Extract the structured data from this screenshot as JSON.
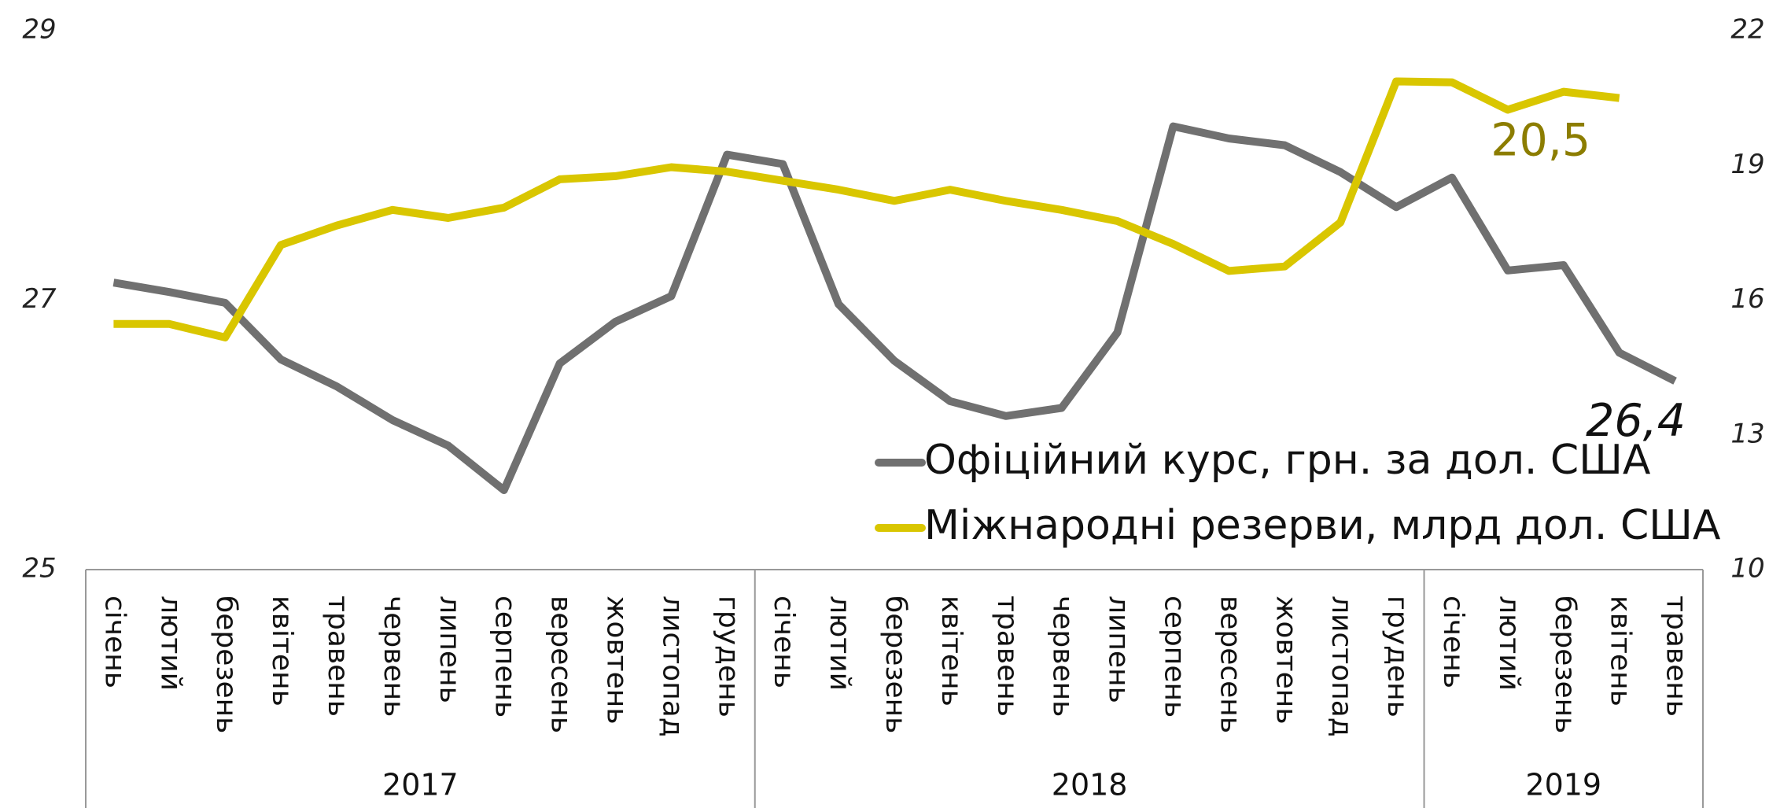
{
  "chart_data": {
    "type": "line",
    "categories": [
      "січень",
      "лютий",
      "березень",
      "квітень",
      "травень",
      "червень",
      "липень",
      "серпень",
      "вересень",
      "жовтень",
      "листопад",
      "грудень",
      "січень",
      "лютий",
      "березень",
      "квітень",
      "травень",
      "червень",
      "липень",
      "серпень",
      "вересень",
      "жовтень",
      "листопад",
      "грудень",
      "січень",
      "лютий",
      "березень",
      "квітень",
      "травень"
    ],
    "groups": [
      {
        "label": "2017",
        "count": 12
      },
      {
        "label": "2018",
        "count": 12
      },
      {
        "label": "2019",
        "count": 5
      }
    ],
    "series": [
      {
        "name": "Офіційний курс, грн. за дол. США",
        "color": "#707070",
        "axis": "y",
        "values": [
          27.13,
          27.06,
          26.98,
          26.56,
          26.36,
          26.11,
          25.92,
          25.59,
          26.53,
          26.84,
          27.03,
          28.08,
          28.01,
          26.97,
          26.55,
          26.25,
          26.14,
          26.2,
          26.76,
          28.29,
          28.2,
          28.15,
          27.95,
          27.69,
          27.91,
          27.22,
          27.26,
          26.61,
          26.4
        ],
        "value_labels": [
          null,
          null,
          null,
          null,
          null,
          null,
          null,
          null,
          null,
          null,
          null,
          null,
          null,
          null,
          null,
          null,
          null,
          null,
          null,
          null,
          null,
          null,
          null,
          null,
          null,
          null,
          null,
          null,
          "26,4"
        ],
        "label_color": "#111111"
      },
      {
        "name": "Міжнародні резерви, млрд дол. США",
        "color": "#d9c600",
        "axis": "y2",
        "values": [
          15.47,
          15.47,
          15.17,
          17.23,
          17.66,
          18.01,
          17.83,
          18.06,
          18.69,
          18.76,
          18.96,
          18.86,
          18.66,
          18.46,
          18.21,
          18.46,
          18.21,
          18.01,
          17.76,
          17.25,
          16.65,
          16.75,
          17.73,
          20.87,
          20.85,
          20.24,
          20.64,
          20.5,
          null
        ],
        "value_labels": [
          null,
          null,
          null,
          null,
          null,
          null,
          null,
          null,
          null,
          null,
          null,
          null,
          null,
          null,
          null,
          null,
          null,
          null,
          null,
          null,
          null,
          null,
          null,
          null,
          null,
          null,
          null,
          "20,5",
          null
        ],
        "label_color": "#8c7d00"
      }
    ],
    "ylim": [
      25,
      29
    ],
    "yticks": [
      25,
      27,
      29
    ],
    "y2lim": [
      10,
      22
    ],
    "y2ticks": [
      10,
      13,
      16,
      19,
      22
    ],
    "grid": false
  }
}
